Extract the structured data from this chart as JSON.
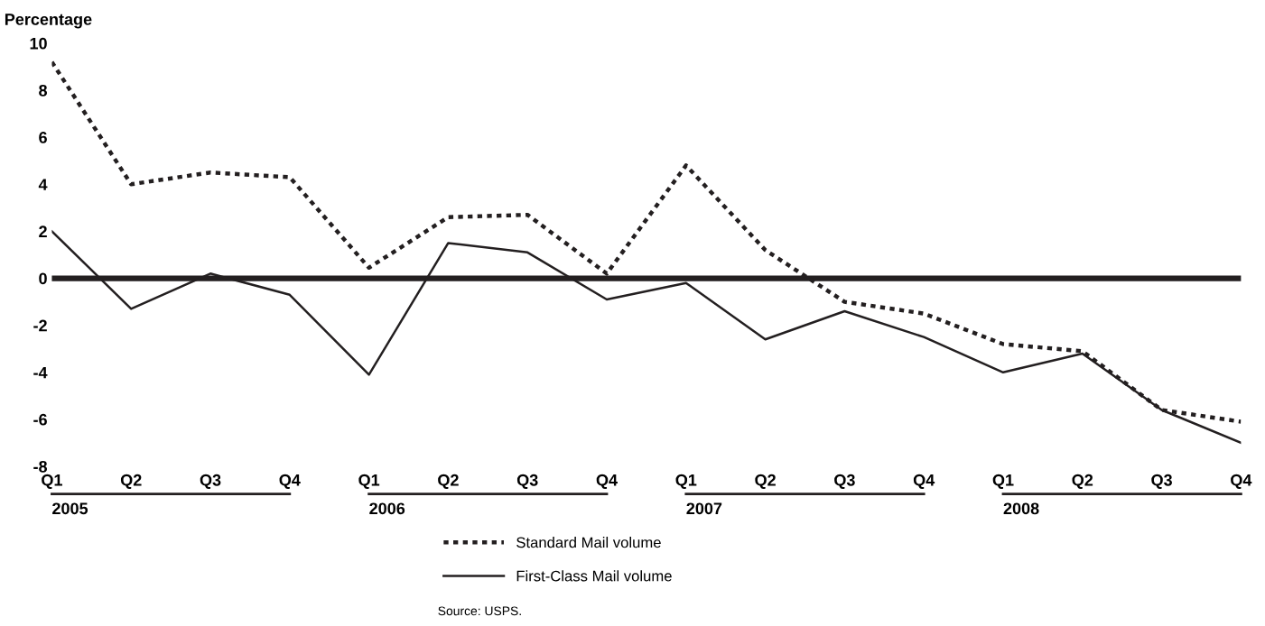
{
  "chart_data": {
    "type": "line",
    "ylabel": "Percentage",
    "categories": [
      "Q1",
      "Q2",
      "Q3",
      "Q4",
      "Q1",
      "Q2",
      "Q3",
      "Q4",
      "Q1",
      "Q2",
      "Q3",
      "Q4",
      "Q1",
      "Q2",
      "Q3",
      "Q4"
    ],
    "series": [
      {
        "name": "Standard Mail volume",
        "color": "#231f20",
        "line_style": "dotted",
        "values": [
          9.2,
          4.0,
          4.5,
          4.3,
          0.45,
          2.6,
          2.7,
          0.2,
          4.8,
          1.2,
          -1.0,
          -1.5,
          -2.8,
          -3.1,
          -5.6,
          -6.1
        ]
      },
      {
        "name": "First-Class Mail volume",
        "color": "#231f20",
        "line_style": "solid",
        "values": [
          2.0,
          -1.3,
          0.2,
          -0.7,
          -4.1,
          1.5,
          1.1,
          -0.9,
          -0.2,
          -2.6,
          -1.4,
          -2.5,
          -4.0,
          -3.2,
          -5.6,
          -7.0
        ]
      }
    ],
    "ylim": [
      -8,
      10
    ],
    "yticks": [
      -8,
      -6,
      -4,
      -2,
      0,
      2,
      4,
      6,
      8,
      10
    ],
    "ref_lines": [
      {
        "axis": "y",
        "value": 0,
        "color": "#231f20",
        "line_style": "solid"
      }
    ],
    "annotations": [
      "2005",
      "2006",
      "2007",
      "2008",
      "Source: USPS."
    ],
    "legend": "bottom",
    "grid": false,
    "marker": "none"
  }
}
